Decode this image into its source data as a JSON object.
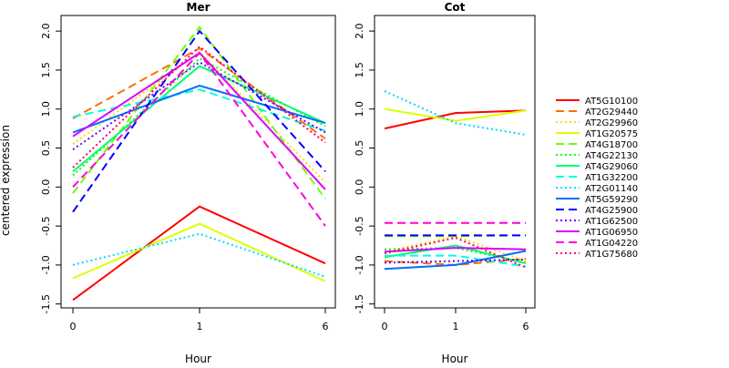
{
  "chart_data": {
    "type": "line",
    "ylabel": "centered expression",
    "xlabel": "Hour",
    "ylim": [
      -1.55,
      2.2
    ],
    "yticks": [
      "-1.5",
      "-1.0",
      "-0.5",
      "0.0",
      "0.5",
      "1.0",
      "1.5",
      "2.0"
    ],
    "x_categories": [
      "0",
      "1",
      "6"
    ],
    "legend_position": "right",
    "series": [
      {
        "name": "AT5G10100",
        "color": "#FF0000",
        "dash": "solid"
      },
      {
        "name": "AT2G29440",
        "color": "#FF6D00",
        "dash": "dashed"
      },
      {
        "name": "AT2G29960",
        "color": "#FFDB00",
        "dash": "dotted"
      },
      {
        "name": "AT1G20575",
        "color": "#DBFF00",
        "dash": "solid"
      },
      {
        "name": "AT4G18700",
        "color": "#6DFF00",
        "dash": "dashed"
      },
      {
        "name": "AT4G22130",
        "color": "#00FF00",
        "dash": "dotted"
      },
      {
        "name": "AT4G29060",
        "color": "#00FF6D",
        "dash": "solid"
      },
      {
        "name": "AT1G32200",
        "color": "#00FFDB",
        "dash": "dashed"
      },
      {
        "name": "AT2G01140",
        "color": "#00DBFF",
        "dash": "dotted"
      },
      {
        "name": "AT5G59290",
        "color": "#006DFF",
        "dash": "solid"
      },
      {
        "name": "AT4G25900",
        "color": "#0000FF",
        "dash": "dashed"
      },
      {
        "name": "AT1G62500",
        "color": "#6D00FF",
        "dash": "dotted"
      },
      {
        "name": "AT1G06950",
        "color": "#DB00FF",
        "dash": "solid"
      },
      {
        "name": "AT1G04220",
        "color": "#FF00DB",
        "dash": "dashed"
      },
      {
        "name": "AT1G75680",
        "color": "#FF006D",
        "dash": "dotted"
      }
    ],
    "panels": [
      {
        "title": "Mer",
        "values": [
          [
            -1.45,
            -0.25,
            -0.98
          ],
          [
            0.88,
            1.78,
            0.62
          ],
          [
            0.55,
            1.73,
            0.06
          ],
          [
            -1.17,
            -0.47,
            -1.21
          ],
          [
            -0.08,
            2.05,
            -0.15
          ],
          [
            0.15,
            1.65,
            0.78
          ],
          [
            0.2,
            1.55,
            0.82
          ],
          [
            0.9,
            1.25,
            0.72
          ],
          [
            -1.0,
            -0.6,
            -1.15
          ],
          [
            0.7,
            1.3,
            0.82
          ],
          [
            -0.32,
            2.0,
            0.2
          ],
          [
            0.48,
            1.6,
            0.7
          ],
          [
            0.65,
            1.72,
            -0.03
          ],
          [
            0.0,
            1.72,
            -0.5
          ],
          [
            0.25,
            1.8,
            0.57
          ]
        ]
      },
      {
        "title": "Cot",
        "values": [
          [
            0.75,
            0.95,
            0.98
          ],
          [
            -0.95,
            -1.0,
            -0.92
          ],
          [
            -0.83,
            -0.63,
            -0.95
          ],
          [
            1.0,
            0.85,
            0.98
          ],
          [
            -0.63,
            -0.63,
            -0.62
          ],
          [
            -0.8,
            -0.78,
            -0.97
          ],
          [
            -0.9,
            -0.75,
            -0.98
          ],
          [
            -0.88,
            -0.88,
            -1.02
          ],
          [
            1.23,
            0.82,
            0.67
          ],
          [
            -1.05,
            -1.0,
            -0.82
          ],
          [
            -0.62,
            -0.62,
            -0.62
          ],
          [
            -0.97,
            -0.95,
            -0.93
          ],
          [
            -0.83,
            -0.78,
            -0.8
          ],
          [
            -0.46,
            -0.46,
            -0.46
          ],
          [
            -0.85,
            -0.65,
            -1.03
          ]
        ]
      }
    ]
  }
}
